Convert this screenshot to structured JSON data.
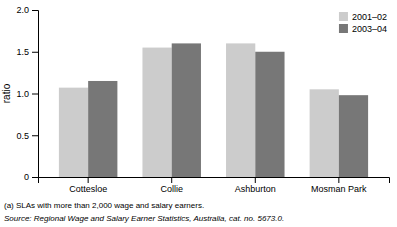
{
  "chart_data": {
    "type": "bar",
    "categories": [
      "Cottesloe",
      "Collie",
      "Ashburton",
      "Mosman Park"
    ],
    "series": [
      {
        "name": "2001–02",
        "color": "#cccccc",
        "values": [
          1.07,
          1.55,
          1.6,
          1.05
        ]
      },
      {
        "name": "2003–04",
        "color": "#777777",
        "values": [
          1.15,
          1.6,
          1.5,
          0.98
        ]
      }
    ],
    "ylabel": "ratio",
    "ylim": [
      0,
      2.0
    ],
    "yticks": [
      0,
      0.5,
      {
        "value": 1.0,
        "label": "1.0"
      },
      1.5,
      {
        "value": 2.0,
        "label": "2.0"
      }
    ],
    "legend": "upper-right",
    "grid": false,
    "annotations": [
      "(a) SLAs with more than 2,000 wage and salary earners.",
      "Source: Regional Wage and Salary Earner Statistics, Australia, cat. no. 5673.0."
    ]
  }
}
